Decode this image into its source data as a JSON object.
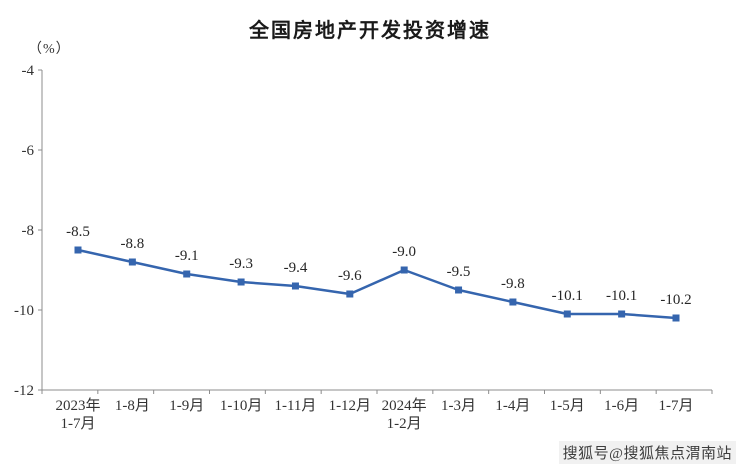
{
  "title": "全国房地产开发投资增速",
  "watermark": "搜狐号@搜狐焦点渭南站",
  "chart_data": {
    "type": "line",
    "title": "全国房地产开发投资增速",
    "ylabel": "（%）",
    "categories": [
      "2023年\n1-7月",
      "1-8月",
      "1-9月",
      "1-10月",
      "1-11月",
      "1-12月",
      "2024年\n1-2月",
      "1-3月",
      "1-4月",
      "1-5月",
      "1-6月",
      "1-7月"
    ],
    "values": [
      -8.5,
      -8.8,
      -9.1,
      -9.3,
      -9.4,
      -9.6,
      -9.0,
      -9.5,
      -9.8,
      -10.1,
      -10.1,
      -10.2
    ],
    "data_labels": [
      "-8.5",
      "-8.8",
      "-9.1",
      "-9.3",
      "-9.4",
      "-9.6",
      "-9.0",
      "-9.5",
      "-9.8",
      "-10.1",
      "-10.1",
      "-10.2"
    ],
    "ylim": [
      -12,
      -4
    ],
    "yticks": [
      -4,
      -6,
      -8,
      -10,
      -12
    ],
    "grid": false,
    "legend": "none",
    "line_color": "#3565ae",
    "marker_color": "#3565ae",
    "axis_color": "#8c8c8c",
    "tick_label_color": "#333333",
    "data_label_color": "#262626"
  }
}
